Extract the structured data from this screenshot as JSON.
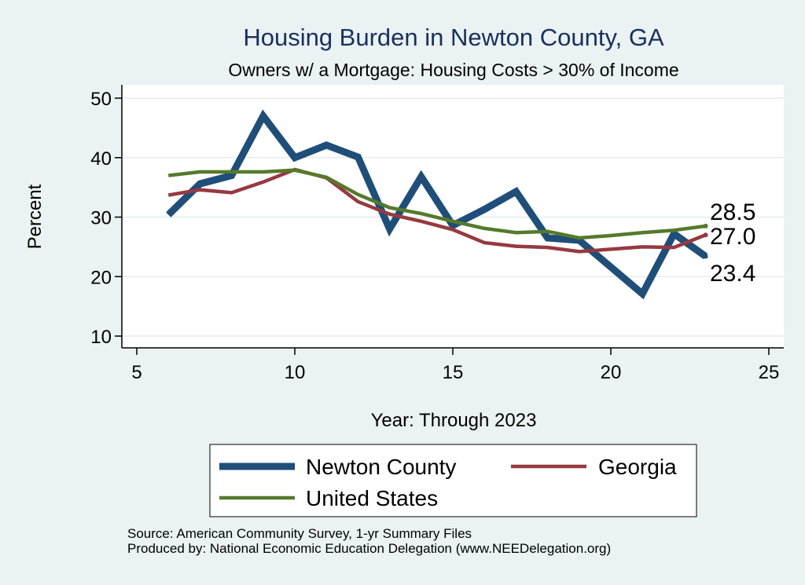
{
  "chart_data": {
    "type": "line",
    "title": "Housing Burden in Newton County, GA",
    "subtitle": "Owners w/ a Mortgage: Housing Costs > 30% of Income",
    "xlabel": "Year: Through 2023",
    "ylabel": "Percent",
    "xlim": [
      5,
      25
    ],
    "ylim": [
      10,
      50
    ],
    "x_ticks": [
      "5",
      "10",
      "15",
      "20",
      "25"
    ],
    "y_ticks": [
      "10",
      "20",
      "30",
      "40",
      "50"
    ],
    "grid": "horizontal",
    "legend_placement": "bottom",
    "series": [
      {
        "name": "Newton County",
        "color": "#1f4e79",
        "x": [
          6,
          7,
          8,
          9,
          10,
          11,
          12,
          13,
          14,
          15,
          16,
          17,
          18,
          19,
          20,
          21,
          22,
          23
        ],
        "values": [
          30.4,
          35.6,
          37.0,
          47.0,
          40.0,
          42.1,
          40.1,
          28.0,
          36.8,
          28.6,
          31.3,
          34.3,
          26.5,
          26.1,
          21.6,
          17.1,
          27.2,
          23.4
        ],
        "end_label": "23.4"
      },
      {
        "name": "Georgia",
        "color": "#963a40",
        "x": [
          6,
          7,
          8,
          9,
          10,
          11,
          12,
          13,
          14,
          15,
          16,
          17,
          18,
          19,
          20,
          21,
          22,
          23
        ],
        "values": [
          33.7,
          34.6,
          34.1,
          35.9,
          38.0,
          36.6,
          32.6,
          30.5,
          29.3,
          27.9,
          25.7,
          25.1,
          24.9,
          24.2,
          24.6,
          25.0,
          24.9,
          27.0
        ],
        "end_label": "27.0"
      },
      {
        "name": "United States",
        "color": "#557a2b",
        "x": [
          6,
          7,
          8,
          9,
          10,
          11,
          12,
          13,
          14,
          15,
          16,
          17,
          18,
          19,
          20,
          21,
          22,
          23
        ],
        "values": [
          37.0,
          37.6,
          37.6,
          37.6,
          37.9,
          36.7,
          33.8,
          31.6,
          30.6,
          29.3,
          28.1,
          27.4,
          27.6,
          26.5,
          26.9,
          27.4,
          27.8,
          28.5
        ],
        "end_label": "28.5"
      }
    ],
    "legend": [
      {
        "label": "Newton County",
        "color": "#1f4e79"
      },
      {
        "label": "Georgia",
        "color": "#963a40"
      },
      {
        "label": "United States",
        "color": "#557a2b"
      }
    ]
  },
  "notes": {
    "source": "Source: American Community Survey, 1-yr Summary Files",
    "produced_by": "Produced by: National Economic Education Delegation (www.NEEDelegation.org)"
  }
}
